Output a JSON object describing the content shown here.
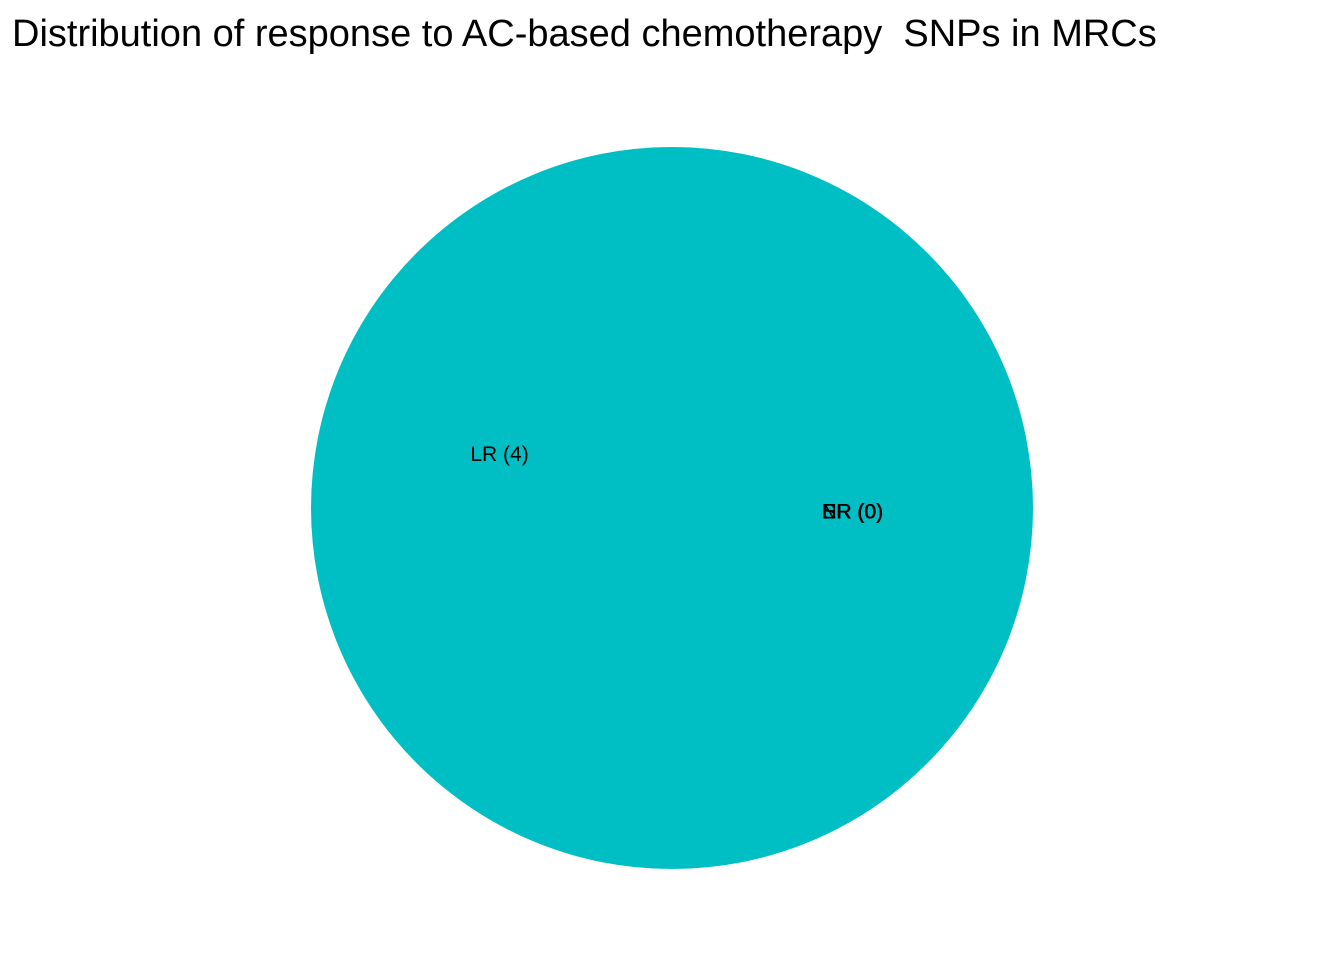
{
  "chart_data": {
    "type": "pie",
    "title": "Distribution of response to AC-based chemotherapy  SNPs in MRCs",
    "categories": [
      "ER",
      "LR",
      "NR",
      "SR"
    ],
    "values": [
      0,
      4,
      0,
      0
    ],
    "labels": [
      "ER (0)",
      "LR (4)",
      "NR (0)",
      "SR (0)"
    ],
    "colors": [
      "#F8766D",
      "#00BFC4",
      "#7CAE00",
      "#C77CFF"
    ],
    "legend": "none",
    "grid": false
  }
}
